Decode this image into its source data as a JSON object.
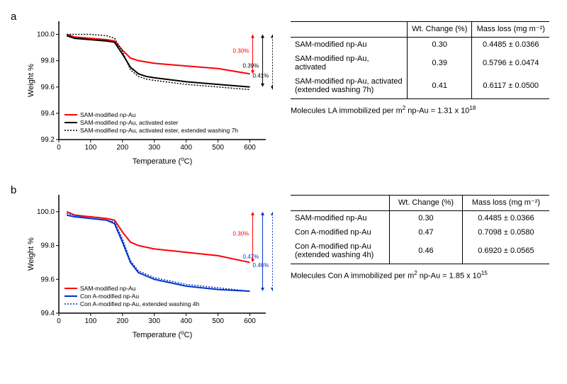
{
  "panelA": {
    "letter": "a",
    "chart": {
      "type": "line",
      "xlabel": "Temperature (°C)",
      "ylabel": "Weight %",
      "xlim": [
        0,
        650
      ],
      "ylim": [
        99.2,
        100.1
      ],
      "xtick_step": 100,
      "yticks": [
        99.2,
        99.4,
        99.6,
        99.8,
        100.0
      ],
      "background_color": "#ffffff",
      "axis_color": "#000000",
      "axis_width": 1.5,
      "label_fontsize": 11,
      "tick_fontsize": 10,
      "legend_fontsize": 8.5,
      "series": [
        {
          "name": "SAM-modified np-Au",
          "color": "#ff0000",
          "dash": "solid",
          "width": 2,
          "x": [
            25,
            50,
            100,
            150,
            175,
            200,
            225,
            250,
            300,
            400,
            500,
            600
          ],
          "y": [
            100.0,
            99.98,
            99.97,
            99.96,
            99.95,
            99.88,
            99.82,
            99.8,
            99.78,
            99.76,
            99.74,
            99.7
          ]
        },
        {
          "name": "SAM-modified np-Au, activated ester",
          "color": "#000000",
          "dash": "solid",
          "width": 2,
          "x": [
            25,
            50,
            100,
            150,
            175,
            200,
            225,
            250,
            275,
            300,
            400,
            500,
            600
          ],
          "y": [
            99.99,
            99.97,
            99.96,
            99.95,
            99.94,
            99.85,
            99.75,
            99.7,
            99.68,
            99.67,
            99.64,
            99.62,
            99.6
          ]
        },
        {
          "name": "SAM-modified np-Au, activated ester, extended washing 7h",
          "color": "#000000",
          "dash": "dotted",
          "width": 1.5,
          "x": [
            25,
            50,
            100,
            150,
            175,
            200,
            225,
            250,
            275,
            300,
            400,
            500,
            600
          ],
          "y": [
            100.0,
            100.0,
            100.0,
            99.99,
            99.97,
            99.87,
            99.73,
            99.68,
            99.66,
            99.65,
            99.62,
            99.6,
            99.58
          ]
        }
      ],
      "annotations": [
        {
          "text": "0.30%",
          "color": "#ff0000"
        },
        {
          "text": "0.39%",
          "color": "#000000"
        },
        {
          "text": "0.41%",
          "color": "#000000"
        }
      ]
    },
    "table": {
      "columns": [
        "",
        "Wt. Change (%)",
        "Mass loss (mg  m⁻²)"
      ],
      "rows": [
        [
          "SAM-modified np-Au",
          "0.30",
          "0.4485 ± 0.0366"
        ],
        [
          "SAM-modified  np-Au, activated",
          "0.39",
          "0.5796 ± 0.0474"
        ],
        [
          "SAM-modified np-Au, activated (extended washing 7h)",
          "0.41",
          "0.6117 ± 0.0500"
        ]
      ]
    },
    "caption_prefix": "Molecules LA immobilized per m",
    "caption_mid": " np-Au = 1.31 x 10",
    "caption_exp": "18"
  },
  "panelB": {
    "letter": "b",
    "chart": {
      "type": "line",
      "xlabel": "Temperature (°C)",
      "ylabel": "Weight %",
      "xlim": [
        0,
        650
      ],
      "ylim": [
        99.4,
        100.1
      ],
      "xtick_step": 100,
      "yticks": [
        99.4,
        99.6,
        99.8,
        100.0
      ],
      "background_color": "#ffffff",
      "axis_color": "#000000",
      "axis_width": 1.5,
      "label_fontsize": 11,
      "tick_fontsize": 10,
      "legend_fontsize": 8.5,
      "series": [
        {
          "name": "SAM-modified np-Au",
          "color": "#ff0000",
          "dash": "solid",
          "width": 2,
          "x": [
            25,
            50,
            100,
            150,
            175,
            200,
            225,
            250,
            300,
            400,
            500,
            600
          ],
          "y": [
            100.0,
            99.98,
            99.97,
            99.96,
            99.95,
            99.88,
            99.82,
            99.8,
            99.78,
            99.76,
            99.74,
            99.7
          ]
        },
        {
          "name": "Con A-modified np-Au",
          "color": "#0033cc",
          "dash": "solid",
          "width": 2,
          "x": [
            25,
            50,
            100,
            150,
            175,
            200,
            225,
            250,
            275,
            300,
            400,
            500,
            600
          ],
          "y": [
            99.98,
            99.97,
            99.96,
            99.95,
            99.93,
            99.82,
            99.7,
            99.64,
            99.62,
            99.6,
            99.56,
            99.54,
            99.53
          ]
        },
        {
          "name": "Con A-modified np-Au, extended washing 4h",
          "color": "#0033cc",
          "dash": "dotted",
          "width": 1.5,
          "x": [
            25,
            50,
            100,
            150,
            175,
            200,
            225,
            250,
            275,
            300,
            400,
            500,
            600
          ],
          "y": [
            99.99,
            99.98,
            99.96,
            99.95,
            99.94,
            99.84,
            99.71,
            99.65,
            99.63,
            99.61,
            99.57,
            99.55,
            99.53
          ]
        }
      ],
      "annotations": [
        {
          "text": "0.30%",
          "color": "#ff0000"
        },
        {
          "text": "0.47%",
          "color": "#0033cc"
        },
        {
          "text": "0.46%",
          "color": "#0033cc"
        }
      ]
    },
    "table": {
      "columns": [
        "",
        "Wt. Change (%)",
        "Mass loss (mg  m⁻²)"
      ],
      "rows": [
        [
          "SAM-modified np-Au",
          "0.30",
          "0.4485 ± 0.0366"
        ],
        [
          "Con A-modified np-Au",
          "0.47",
          "0.7098 ± 0.0580"
        ],
        [
          "Con A-modified np-Au (extended washing 4h)",
          "0.46",
          "0.6920 ± 0.0565"
        ]
      ]
    },
    "caption_prefix": "Molecules Con A immobilized per m",
    "caption_mid": " np-Au = 1.85 x 10",
    "caption_exp": "15"
  }
}
